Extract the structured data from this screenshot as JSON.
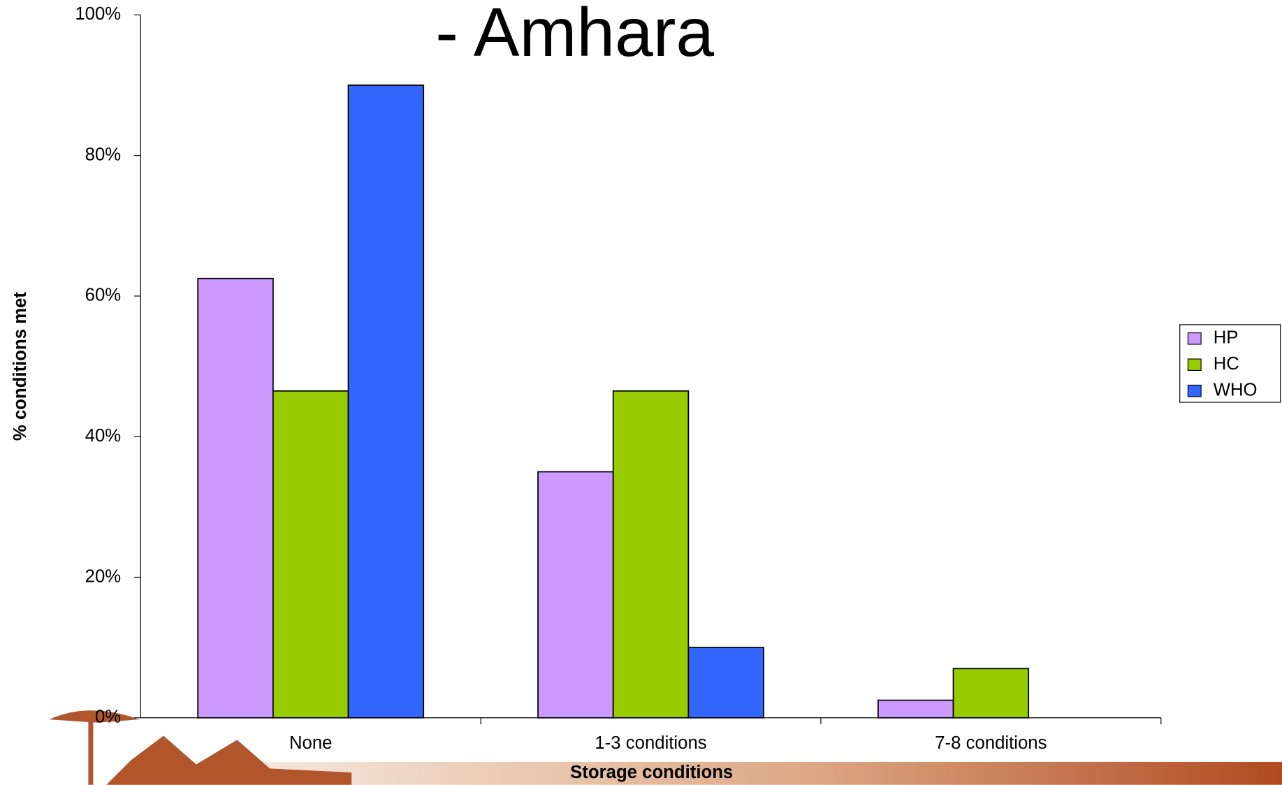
{
  "chart_data": {
    "type": "bar",
    "title": "- Amhara",
    "x_label": "Storage conditions",
    "y_label": "% conditions met",
    "categories": [
      "None",
      "1-3 conditions",
      "7-8 conditions"
    ],
    "series": [
      {
        "name": "HP",
        "color": "#cc99ff",
        "values": [
          62.5,
          35,
          2.5
        ]
      },
      {
        "name": "HC",
        "color": "#99cc00",
        "values": [
          46.5,
          46.5,
          7
        ]
      },
      {
        "name": "WHO",
        "color": "#3366ff",
        "values": [
          90,
          10,
          0
        ]
      }
    ],
    "ylim": [
      0,
      100
    ],
    "yticks": [
      {
        "value": 0,
        "label": "0%"
      },
      {
        "value": 20,
        "label": "20%"
      },
      {
        "value": 40,
        "label": "40%"
      },
      {
        "value": 60,
        "label": "60%"
      },
      {
        "value": 80,
        "label": "80%"
      },
      {
        "value": 100,
        "label": "100%"
      }
    ],
    "legend": "right"
  }
}
